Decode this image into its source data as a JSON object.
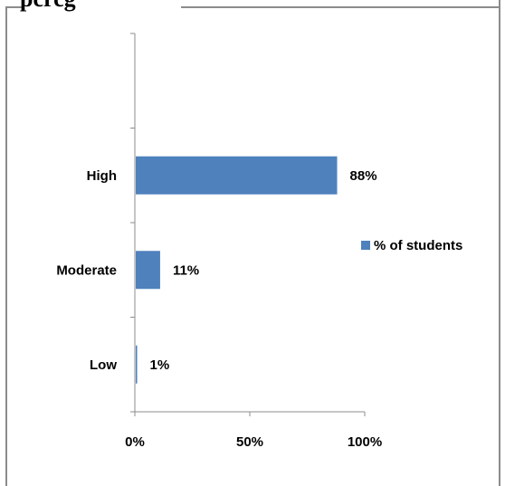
{
  "title_fragment": "pcrcg",
  "chart_data": {
    "type": "bar",
    "orientation": "horizontal",
    "categories": [
      "High",
      "Moderate",
      "Low"
    ],
    "series": [
      {
        "name": "% of students",
        "values": [
          88,
          11,
          1
        ],
        "labels": [
          "88%",
          "11%",
          "1%"
        ],
        "color": "#4f81bd"
      }
    ],
    "xlim": [
      0,
      100
    ],
    "x_ticks": [
      0,
      50,
      100
    ],
    "x_tick_labels": [
      "0%",
      "50%",
      "100%"
    ],
    "legend_position": "right",
    "grid": false
  }
}
